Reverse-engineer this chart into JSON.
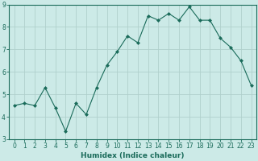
{
  "x": [
    0,
    1,
    2,
    3,
    4,
    5,
    6,
    7,
    8,
    9,
    10,
    11,
    12,
    13,
    14,
    15,
    16,
    17,
    18,
    19,
    20,
    21,
    22,
    23
  ],
  "y": [
    4.5,
    4.6,
    4.5,
    5.3,
    4.4,
    3.35,
    4.6,
    4.1,
    5.3,
    6.3,
    6.9,
    7.6,
    7.3,
    8.5,
    8.3,
    8.6,
    8.3,
    8.9,
    8.3,
    8.3,
    7.5,
    7.1,
    6.5,
    5.4
  ],
  "line_color": "#1a6b5a",
  "marker": "D",
  "marker_size": 2.0,
  "bg_color": "#cceae7",
  "grid_color": "#b0d0cc",
  "xlabel": "Humidex (Indice chaleur)",
  "xlim": [
    -0.5,
    23.5
  ],
  "ylim": [
    3,
    9
  ],
  "yticks": [
    3,
    4,
    5,
    6,
    7,
    8,
    9
  ],
  "xticks": [
    0,
    1,
    2,
    3,
    4,
    5,
    6,
    7,
    8,
    9,
    10,
    11,
    12,
    13,
    14,
    15,
    16,
    17,
    18,
    19,
    20,
    21,
    22,
    23
  ],
  "tick_label_fontsize": 5.5,
  "xlabel_fontsize": 6.5
}
